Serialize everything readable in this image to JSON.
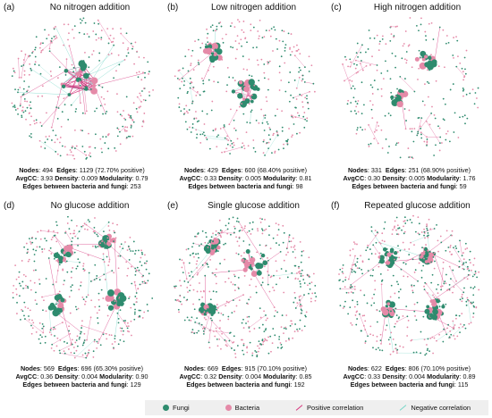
{
  "colors": {
    "fungi": "#2e8b6e",
    "bacteria": "#e58aa8",
    "positive": "#d6337c",
    "negative": "#76d6c8"
  },
  "legend": {
    "fungi": "Fungi",
    "bacteria": "Bacteria",
    "positive": "Positive correlation",
    "negative": "Negative correlation"
  },
  "stat_labels": {
    "nodes": "Nodes",
    "edges": "Edges",
    "avgcc": "AvgCC",
    "density": "Density",
    "modularity": "Modularity",
    "between": "Edges between bacteria and fungi"
  },
  "panels": [
    {
      "label": "(a)",
      "title": "No nitrogen addition",
      "nodes": "494",
      "edges": "1129",
      "positive": "(72.70% positive)",
      "avgcc": "3.93",
      "density": "0.009",
      "modularity": "0.79",
      "between": "253"
    },
    {
      "label": "(b)",
      "title": "Low nitrogen addition",
      "nodes": "429",
      "edges": "600",
      "positive": "(68.40% positive)",
      "avgcc": "0.33",
      "density": "0.005",
      "modularity": "0.81",
      "between": "98"
    },
    {
      "label": "(c)",
      "title": "High nitrogen addition",
      "nodes": "331",
      "edges": "251",
      "positive": "(68.90% positive)",
      "avgcc": "0.30",
      "density": "0.005",
      "modularity": "1.76",
      "between": "59"
    },
    {
      "label": "(d)",
      "title": "No glucose addition",
      "nodes": "569",
      "edges": "696",
      "positive": "(65.30% positive)",
      "avgcc": "0.36",
      "density": "0.004",
      "modularity": "0.90",
      "between": "129"
    },
    {
      "label": "(e)",
      "title": "Single glucose addition",
      "nodes": "669",
      "edges": "915",
      "positive": "(70.10% positive)",
      "avgcc": "0.32",
      "density": "0.004",
      "modularity": "0.85",
      "between": "192"
    },
    {
      "label": "(f)",
      "title": "Repeated glucose addition",
      "nodes": "622",
      "edges": "806",
      "positive": "(70.10% positive)",
      "avgcc": "0.33",
      "density": "0.004",
      "modularity": "0.89",
      "between": "115"
    }
  ]
}
